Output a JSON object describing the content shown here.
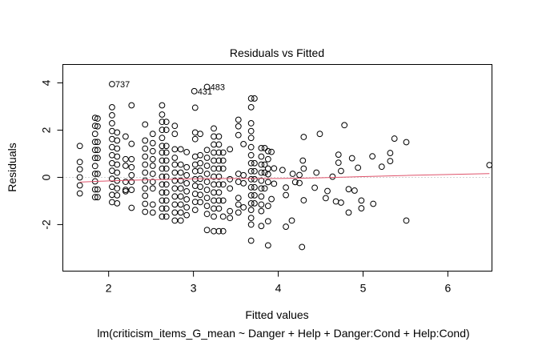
{
  "chart_data": {
    "type": "scatter",
    "title": "Residuals vs Fitted",
    "xlabel": "Fitted values",
    "ylabel": "Residuals",
    "subtitle": "lm(criticism_items_G_mean ~ Danger + Help + Danger:Cond + Help:Cond)",
    "xlim": [
      1.46,
      6.52
    ],
    "ylim": [
      -3.97,
      4.78
    ],
    "xticks": [
      2,
      3,
      4,
      5,
      6
    ],
    "xtick_labels": [
      "2",
      "3",
      "4",
      "5",
      "6"
    ],
    "yticks": [
      -2,
      0,
      2,
      4
    ],
    "ytick_labels": [
      "-2",
      "0",
      "2",
      "4"
    ],
    "grid": false,
    "reference_line": 0,
    "point_columns": [
      {
        "x": 1.66,
        "r": [
          1.33,
          0.65,
          0.34,
          0.0,
          -0.34,
          -0.68
        ]
      },
      {
        "x": 1.84,
        "r": [
          2.52,
          2.18,
          1.84,
          1.5,
          1.16,
          0.82,
          0.48,
          0.15,
          -0.17,
          -0.51,
          -0.84
        ]
      },
      {
        "x": 1.87,
        "r": [
          2.49,
          2.16,
          1.5,
          1.16,
          0.82,
          0.15,
          -0.51,
          -0.84
        ]
      },
      {
        "x": 2.04,
        "r": [
          2.97,
          2.63,
          2.29,
          1.96,
          1.62,
          1.28,
          0.94,
          0.6,
          0.28,
          -0.06,
          -0.4,
          -0.74,
          -1.05
        ]
      },
      {
        "x": 2.1,
        "r": [
          1.9,
          1.56,
          1.22,
          0.88,
          0.54,
          0.2,
          -0.14,
          -0.47,
          -0.76,
          -1.1
        ]
      },
      {
        "x": 2.2,
        "r": [
          1.73,
          0.77,
          0.49,
          -0.19,
          -0.53,
          -0.59
        ]
      },
      {
        "x": 2.27,
        "r": [
          3.05,
          1.42,
          0.77,
          0.43,
          0.09,
          -0.19,
          -0.53,
          -1.29
        ]
      },
      {
        "x": 2.43,
        "r": [
          2.24,
          1.56,
          1.22,
          0.88,
          0.54,
          0.2,
          -0.14,
          -0.47,
          -0.78,
          -1.12,
          -1.46
        ]
      },
      {
        "x": 2.52,
        "r": [
          1.84,
          1.45,
          1.11,
          0.77,
          0.49,
          0.15,
          -0.19,
          -0.47,
          -1.15,
          -1.49
        ]
      },
      {
        "x": 2.63,
        "r": [
          3.05,
          2.66,
          2.35,
          2.01,
          1.67,
          1.33,
          1.05,
          0.71,
          0.37,
          0.03,
          -0.3,
          -0.64,
          -0.98,
          -1.32,
          -1.66
        ]
      },
      {
        "x": 2.68,
        "r": [
          2.35,
          2.01,
          1.33,
          1.05,
          0.71,
          0.37,
          0.03,
          -0.3,
          -0.64,
          -0.98,
          -1.32,
          -1.66
        ]
      },
      {
        "x": 2.78,
        "r": [
          2.18,
          1.84,
          1.19,
          0.83,
          0.54,
          0.2,
          -0.14,
          -0.47,
          -0.81,
          -1.15,
          -1.49,
          -1.83
        ]
      },
      {
        "x": 2.85,
        "r": [
          1.19,
          0.54,
          0.2,
          -0.14,
          -0.47,
          -0.81,
          -1.15,
          -1.49,
          -1.83
        ]
      },
      {
        "x": 2.92,
        "r": [
          1.07,
          0.43,
          0.09,
          -0.25,
          -0.59,
          -0.93,
          -1.27,
          -1.6
        ]
      },
      {
        "x": 3.02,
        "r": [
          2.95,
          1.9,
          1.62,
          0.88,
          0.54,
          0.26,
          -0.08,
          -0.36,
          -0.7,
          -1.04,
          -1.38
        ]
      },
      {
        "x": 3.08,
        "r": [
          1.84,
          0.94,
          0.6,
          0.28,
          -0.06,
          -0.4,
          -0.74,
          -1.05
        ]
      },
      {
        "x": 3.16,
        "r": [
          1.16,
          0.83,
          0.49,
          0.15,
          -0.19,
          -0.53,
          -0.87,
          -1.21,
          -1.55,
          -2.23
        ]
      },
      {
        "x": 3.24,
        "r": [
          2.07,
          1.73,
          1.39,
          1.05,
          0.71,
          0.37,
          0.03,
          -0.3,
          -0.64,
          -0.98,
          -1.32,
          -1.66,
          -2.28
        ]
      },
      {
        "x": 3.3,
        "r": [
          1.73,
          1.39,
          1.05,
          0.71,
          0.37,
          0.03,
          -0.3,
          -0.64,
          -0.98,
          -1.32,
          -2.28
        ]
      },
      {
        "x": 3.35,
        "r": [
          1.05,
          0.71,
          0.37,
          -0.3,
          -0.98,
          -1.66,
          -2.28
        ]
      },
      {
        "x": 3.43,
        "r": [
          1.19,
          -0.08,
          -0.47,
          -1.43,
          -1.72
        ]
      },
      {
        "x": 3.53,
        "r": [
          2.44,
          2.16,
          1.79,
          0.15,
          -0.19,
          -0.87,
          -1.15,
          -1.49
        ]
      },
      {
        "x": 3.59,
        "r": [
          1.41,
          0.09,
          -0.25,
          -1.27
        ]
      },
      {
        "x": 3.68,
        "r": [
          3.34,
          2.97,
          2.29,
          1.96,
          1.67,
          1.28,
          0.94,
          0.6,
          0.26,
          -0.08,
          -0.42,
          -0.76,
          -1.1,
          -1.38,
          -1.72,
          -2.0,
          -2.68
        ]
      },
      {
        "x": 3.72,
        "r": [
          3.34,
          0.6,
          0.26,
          -0.08,
          -0.42,
          -0.76,
          -1.1
        ]
      },
      {
        "x": 3.8,
        "r": [
          1.24,
          0.88,
          0.54,
          0.2,
          -0.14,
          -0.47,
          -0.81,
          -1.15,
          -1.43,
          -2.06
        ]
      },
      {
        "x": 3.84,
        "r": [
          1.24,
          0.54,
          0.2,
          -0.47
        ]
      },
      {
        "x": 3.88,
        "r": [
          1.11,
          0.77,
          0.37,
          0.13,
          -0.2,
          -1.21,
          -1.86,
          -2.88
        ]
      },
      {
        "x": 3.92,
        "r": [
          1.08,
          -0.92
        ]
      },
      {
        "x": 3.95,
        "r": [
          0.38,
          -0.27
        ]
      },
      {
        "x": 4.05,
        "r": [
          0.31
        ]
      },
      {
        "x": 4.09,
        "r": [
          -0.43,
          -0.75,
          -2.09
        ]
      },
      {
        "x": 4.16,
        "r": [
          -1.83
        ]
      },
      {
        "x": 4.17,
        "r": [
          0.15
        ]
      },
      {
        "x": 4.2,
        "r": [
          -0.2
        ]
      },
      {
        "x": 4.25,
        "r": [
          0.1,
          -0.24
        ]
      },
      {
        "x": 4.28,
        "r": [
          -2.95
        ]
      },
      {
        "x": 4.29,
        "r": [
          0.71
        ]
      },
      {
        "x": 4.3,
        "r": [
          1.71,
          0.37,
          -0.97
        ]
      },
      {
        "x": 4.43,
        "r": [
          -0.44
        ]
      },
      {
        "x": 4.45,
        "r": [
          0.2
        ]
      },
      {
        "x": 4.49,
        "r": [
          1.84
        ]
      },
      {
        "x": 4.56,
        "r": [
          -0.88
        ]
      },
      {
        "x": 4.58,
        "r": [
          -0.58
        ]
      },
      {
        "x": 4.64,
        "r": [
          0.03
        ]
      },
      {
        "x": 4.68,
        "r": [
          -1.02
        ]
      },
      {
        "x": 4.71,
        "r": [
          0.96,
          0.62
        ]
      },
      {
        "x": 4.74,
        "r": [
          0.27,
          -1.07
        ]
      },
      {
        "x": 4.78,
        "r": [
          2.21
        ]
      },
      {
        "x": 4.83,
        "r": [
          -0.5,
          -1.49
        ]
      },
      {
        "x": 4.87,
        "r": [
          0.81
        ]
      },
      {
        "x": 4.9,
        "r": [
          -0.56
        ]
      },
      {
        "x": 4.94,
        "r": [
          0.41
        ]
      },
      {
        "x": 4.98,
        "r": [
          -0.98,
          -1.31
        ]
      },
      {
        "x": 5.11,
        "r": [
          0.89
        ]
      },
      {
        "x": 5.12,
        "r": [
          -1.12
        ]
      },
      {
        "x": 5.22,
        "r": [
          0.45
        ]
      },
      {
        "x": 5.32,
        "r": [
          1.03,
          0.69
        ]
      },
      {
        "x": 5.37,
        "r": [
          1.64
        ]
      },
      {
        "x": 5.51,
        "r": [
          1.49,
          -1.83
        ]
      },
      {
        "x": 6.49,
        "r": [
          0.52
        ]
      }
    ],
    "labeled_points": [
      {
        "label": "737",
        "x": 2.04,
        "y": 3.95
      },
      {
        "label": "431",
        "x": 3.01,
        "y": 3.65
      },
      {
        "label": "483",
        "x": 3.16,
        "y": 3.83
      }
    ],
    "smoother": {
      "color": "#DF536B",
      "x": [
        1.66,
        2.0,
        2.5,
        3.0,
        3.5,
        4.0,
        4.5,
        5.0,
        5.5,
        6.0,
        6.49
      ],
      "y": [
        -0.2,
        -0.15,
        -0.1,
        -0.06,
        -0.05,
        -0.05,
        -0.02,
        0.03,
        0.08,
        0.12,
        0.16
      ]
    }
  }
}
